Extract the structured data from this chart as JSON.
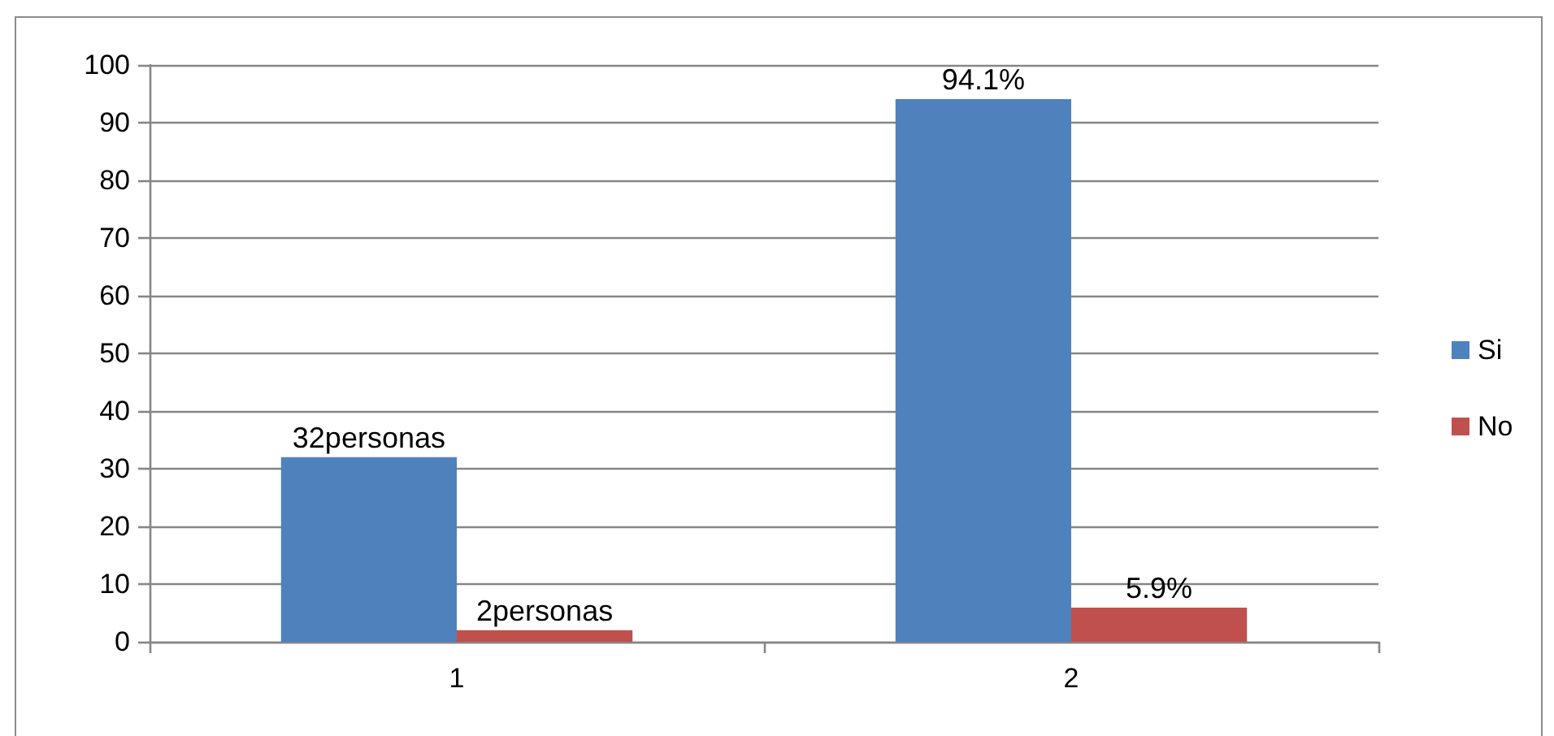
{
  "chart_data": {
    "type": "bar",
    "categories": [
      "1",
      "2"
    ],
    "series": [
      {
        "name": "Si",
        "color": "#4f81bd",
        "values": [
          32,
          94.1
        ],
        "value_labels": [
          "32personas",
          "94.1%"
        ]
      },
      {
        "name": "No",
        "color": "#c0504d",
        "values": [
          2,
          5.9
        ],
        "value_labels": [
          "2personas",
          "5.9%"
        ]
      }
    ],
    "ylim": [
      0,
      100
    ],
    "yticks": [
      0,
      10,
      20,
      30,
      40,
      50,
      60,
      70,
      80,
      90,
      100
    ],
    "grid": "y",
    "legend": "right"
  }
}
